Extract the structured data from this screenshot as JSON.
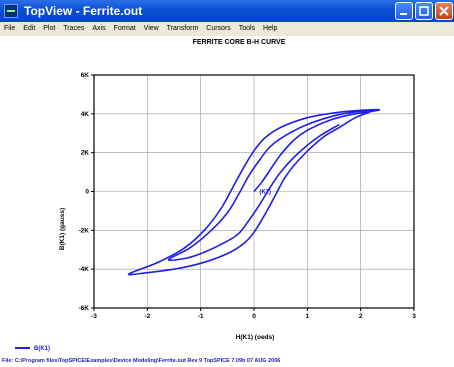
{
  "window": {
    "title": "TopView - Ferrite.out"
  },
  "menu": [
    "File",
    "Edit",
    "Plot",
    "Traces",
    "Axis",
    "Format",
    "View",
    "Transform",
    "Cursors",
    "Tools",
    "Help"
  ],
  "chart_data": {
    "type": "line",
    "title": "FERRITE CORE B-H CURVE",
    "xlabel": "H(K1)  (oeds)",
    "ylabel": "B(K1)  (gauss)",
    "xlim": [
      -3,
      3
    ],
    "ylim": [
      -6000,
      6000
    ],
    "xticks": [
      "-3",
      "-2",
      "-1",
      "0",
      "1",
      "2",
      "3"
    ],
    "yticks": [
      "6K",
      "4K",
      "2K",
      "0",
      "-2K",
      "-4K",
      "-6K"
    ],
    "grid": true,
    "trace_label": "B(K1)",
    "series": [
      {
        "name": "B(K1)",
        "color": "#1e1eee",
        "values": [
          [
            0,
            0
          ],
          [
            0.15,
            500
          ],
          [
            0.3,
            1100
          ],
          [
            0.5,
            1900
          ],
          [
            0.75,
            2650
          ],
          [
            1.0,
            3150
          ],
          [
            1.4,
            3650
          ],
          [
            1.8,
            3950
          ],
          [
            2.35,
            4200
          ],
          [
            2.0,
            4180
          ],
          [
            1.5,
            4050
          ],
          [
            1.0,
            3800
          ],
          [
            0.5,
            3300
          ],
          [
            0.2,
            2750
          ],
          [
            0.0,
            2100
          ],
          [
            -0.2,
            1200
          ],
          [
            -0.4,
            200
          ],
          [
            -0.6,
            -800
          ],
          [
            -0.9,
            -1900
          ],
          [
            -1.3,
            -2900
          ],
          [
            -1.8,
            -3650
          ],
          [
            -2.35,
            -4250
          ],
          [
            -2.0,
            -4180
          ],
          [
            -1.5,
            -4000
          ],
          [
            -1.0,
            -3700
          ],
          [
            -0.5,
            -3200
          ],
          [
            -0.2,
            -2700
          ],
          [
            0.0,
            -2100
          ],
          [
            0.2,
            -1200
          ],
          [
            0.4,
            -200
          ],
          [
            0.6,
            800
          ],
          [
            0.9,
            1800
          ],
          [
            1.3,
            2800
          ],
          [
            1.6,
            3300
          ],
          [
            1.9,
            3800
          ],
          [
            2.2,
            4150
          ],
          [
            1.9,
            4100
          ],
          [
            1.5,
            3900
          ],
          [
            1.0,
            3450
          ],
          [
            0.6,
            2900
          ],
          [
            0.3,
            2300
          ],
          [
            0.1,
            1600
          ],
          [
            -0.1,
            800
          ],
          [
            -0.3,
            -200
          ],
          [
            -0.5,
            -1100
          ],
          [
            -0.8,
            -2000
          ],
          [
            -1.2,
            -2900
          ],
          [
            -1.6,
            -3500
          ],
          [
            -1.3,
            -3450
          ],
          [
            -1.0,
            -3200
          ],
          [
            -0.6,
            -2700
          ],
          [
            -0.3,
            -2200
          ],
          [
            -0.1,
            -1500
          ],
          [
            0.1,
            -700
          ],
          [
            0.3,
            200
          ],
          [
            0.5,
            1000
          ],
          [
            0.8,
            1900
          ],
          [
            1.2,
            2800
          ],
          [
            1.6,
            3450
          ]
        ]
      }
    ],
    "annotation": "(K1)"
  },
  "status": "File: C:\\Program files\\TopSPICE\\Examples\\Device Modeling\\Ferrite.out   Rev 9      TopSPICE 7.09b    07 AUG 2006"
}
